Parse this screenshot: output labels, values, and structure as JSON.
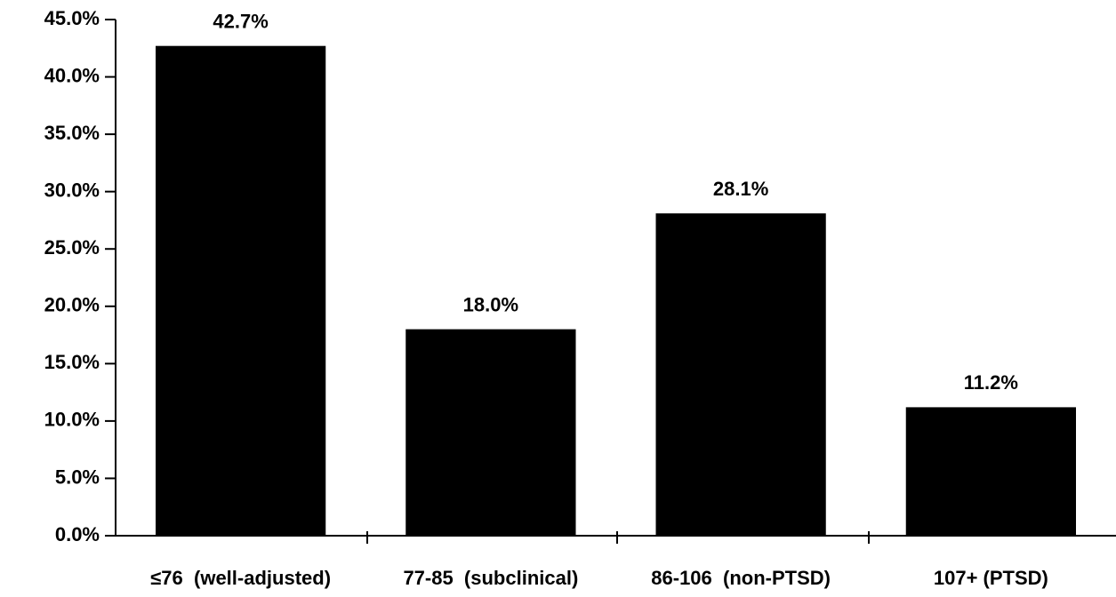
{
  "chart_data": {
    "type": "bar",
    "categories": [
      "≤76  (well-adjusted)",
      "77-85  (subclinical)",
      "86-106  (non-PTSD)",
      "107+ (PTSD)"
    ],
    "values": [
      42.7,
      18.0,
      28.1,
      11.2
    ],
    "value_labels": [
      "42.7%",
      "18.0%",
      "28.1%",
      "11.2%"
    ],
    "color": "#000000",
    "ylim": [
      0,
      45
    ],
    "yticks": [
      {
        "value": 0,
        "label": "0.0%"
      },
      {
        "value": 5,
        "label": "5.0%"
      },
      {
        "value": 10,
        "label": "10.0%"
      },
      {
        "value": 15,
        "label": "15.0%"
      },
      {
        "value": 20,
        "label": "20.0%"
      },
      {
        "value": 25,
        "label": "25.0%"
      },
      {
        "value": 30,
        "label": "30.0%"
      },
      {
        "value": 35,
        "label": "35.0%"
      },
      {
        "value": 40,
        "label": "40.0%"
      },
      {
        "value": 45,
        "label": "45.0%"
      }
    ],
    "grid": false
  }
}
